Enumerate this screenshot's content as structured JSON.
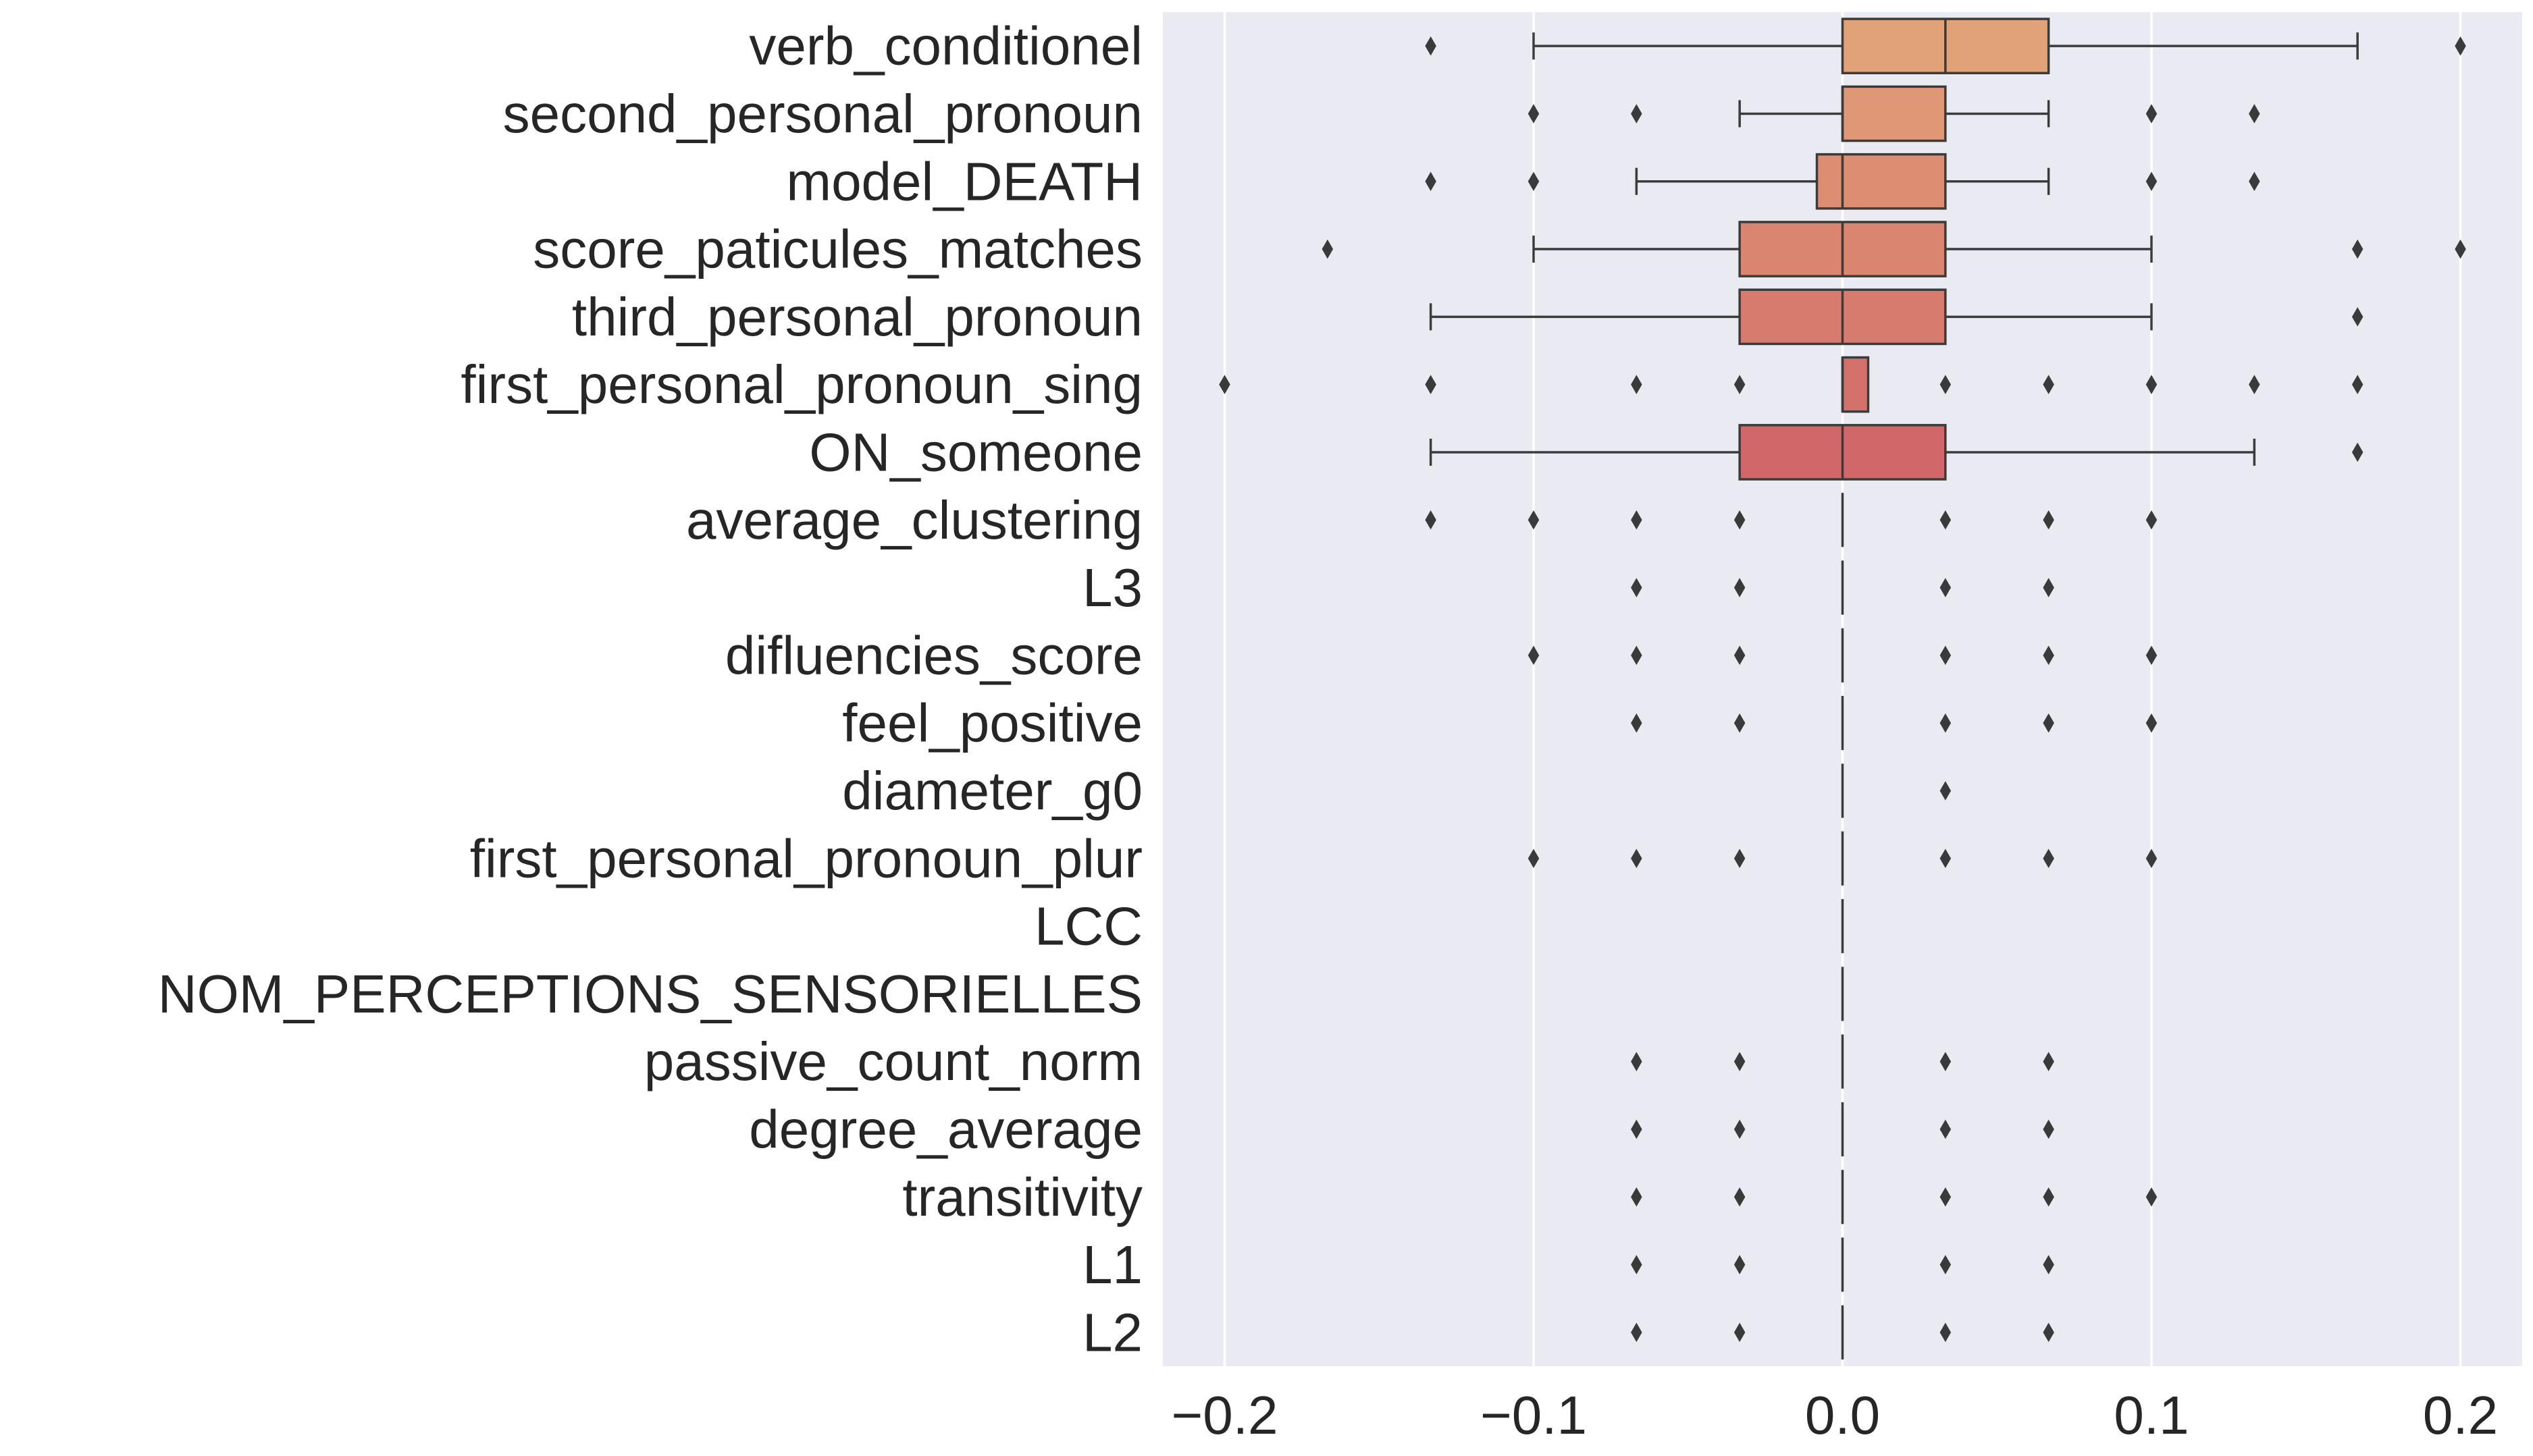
{
  "chart_data": {
    "type": "boxplot",
    "orientation": "horizontal",
    "title": "",
    "xlabel": "",
    "ylabel": "",
    "xlim": [
      -0.22,
      0.22
    ],
    "xticks": [
      -0.2,
      -0.1,
      0.0,
      0.1,
      0.2
    ],
    "xtick_labels": [
      "−0.2",
      "−0.1",
      "0.0",
      "0.1",
      "0.2"
    ],
    "grid": true,
    "colors": {
      "plot_background": "#eaeaf2",
      "grid": "#ffffff",
      "line": "#3b3b3b",
      "box_fills": [
        "#e2a278",
        "#df9775",
        "#dd8d72",
        "#d98570",
        "#d77b6e",
        "#d5716b",
        "#d26769"
      ]
    },
    "categories": [
      "verb_conditionel",
      "second_personal_pronoun",
      "model_DEATH",
      "score_paticules_matches",
      "third_personal_pronoun",
      "first_personal_pronoun_sing",
      "ON_someone",
      "average_clustering",
      "L3",
      "difluencies_score",
      "feel_positive",
      "diameter_g0",
      "first_personal_pronoun_plur",
      "LCC",
      "NOM_PERCEPTIONS_SENSORIELLES",
      "passive_count_norm",
      "degree_average",
      "transitivity",
      "L1",
      "L2"
    ],
    "boxes": [
      {
        "whislo": -0.1,
        "q1": 0.0,
        "med": 0.0333,
        "q3": 0.0667,
        "whishi": 0.1667,
        "fliers": [
          -0.1333,
          0.2
        ]
      },
      {
        "whislo": -0.0333,
        "q1": 0.0,
        "med": 0.0,
        "q3": 0.0333,
        "whishi": 0.0667,
        "fliers": [
          -0.1,
          -0.0667,
          0.1,
          0.1333
        ]
      },
      {
        "whislo": -0.0667,
        "q1": -0.0083,
        "med": 0.0,
        "q3": 0.0333,
        "whishi": 0.0667,
        "fliers": [
          -0.1333,
          -0.1,
          0.1,
          0.1333
        ]
      },
      {
        "whislo": -0.1,
        "q1": -0.0333,
        "med": 0.0,
        "q3": 0.0333,
        "whishi": 0.1,
        "fliers": [
          -0.1667,
          0.1667,
          0.2
        ]
      },
      {
        "whislo": -0.1333,
        "q1": -0.0333,
        "med": 0.0,
        "q3": 0.0333,
        "whishi": 0.1,
        "fliers": [
          0.1667
        ]
      },
      {
        "whislo": 0.0,
        "q1": 0.0,
        "med": 0.0,
        "q3": 0.0083,
        "whishi": 0.0083,
        "fliers": [
          -0.2,
          -0.1333,
          -0.0667,
          -0.0333,
          0.0333,
          0.0667,
          0.1,
          0.1333,
          0.1667
        ]
      },
      {
        "whislo": -0.1333,
        "q1": -0.0333,
        "med": 0.0,
        "q3": 0.0333,
        "whishi": 0.1333,
        "fliers": [
          0.1667
        ]
      },
      {
        "whislo": 0.0,
        "q1": 0.0,
        "med": 0.0,
        "q3": 0.0,
        "whishi": 0.0,
        "fliers": [
          -0.1333,
          -0.1,
          -0.0667,
          -0.0333,
          0.0333,
          0.0667,
          0.1
        ]
      },
      {
        "whislo": 0.0,
        "q1": 0.0,
        "med": 0.0,
        "q3": 0.0,
        "whishi": 0.0,
        "fliers": [
          -0.0667,
          -0.0333,
          0.0333,
          0.0667
        ]
      },
      {
        "whislo": 0.0,
        "q1": 0.0,
        "med": 0.0,
        "q3": 0.0,
        "whishi": 0.0,
        "fliers": [
          -0.1,
          -0.0667,
          -0.0333,
          0.0333,
          0.0667,
          0.1
        ]
      },
      {
        "whislo": 0.0,
        "q1": 0.0,
        "med": 0.0,
        "q3": 0.0,
        "whishi": 0.0,
        "fliers": [
          -0.0667,
          -0.0333,
          0.0333,
          0.0667,
          0.1
        ]
      },
      {
        "whislo": 0.0,
        "q1": 0.0,
        "med": 0.0,
        "q3": 0.0,
        "whishi": 0.0,
        "fliers": [
          0.0333
        ]
      },
      {
        "whislo": 0.0,
        "q1": 0.0,
        "med": 0.0,
        "q3": 0.0,
        "whishi": 0.0,
        "fliers": [
          -0.1,
          -0.0667,
          -0.0333,
          0.0333,
          0.0667,
          0.1
        ]
      },
      {
        "whislo": 0.0,
        "q1": 0.0,
        "med": 0.0,
        "q3": 0.0,
        "whishi": 0.0,
        "fliers": []
      },
      {
        "whislo": 0.0,
        "q1": 0.0,
        "med": 0.0,
        "q3": 0.0,
        "whishi": 0.0,
        "fliers": []
      },
      {
        "whislo": 0.0,
        "q1": 0.0,
        "med": 0.0,
        "q3": 0.0,
        "whishi": 0.0,
        "fliers": [
          -0.0667,
          -0.0333,
          0.0333,
          0.0667
        ]
      },
      {
        "whislo": 0.0,
        "q1": 0.0,
        "med": 0.0,
        "q3": 0.0,
        "whishi": 0.0,
        "fliers": [
          -0.0667,
          -0.0333,
          0.0333,
          0.0667
        ]
      },
      {
        "whislo": 0.0,
        "q1": 0.0,
        "med": 0.0,
        "q3": 0.0,
        "whishi": 0.0,
        "fliers": [
          -0.0667,
          -0.0333,
          0.0333,
          0.0667,
          0.1
        ]
      },
      {
        "whislo": 0.0,
        "q1": 0.0,
        "med": 0.0,
        "q3": 0.0,
        "whishi": 0.0,
        "fliers": [
          -0.0667,
          -0.0333,
          0.0333,
          0.0667
        ]
      },
      {
        "whislo": 0.0,
        "q1": 0.0,
        "med": 0.0,
        "q3": 0.0,
        "whishi": 0.0,
        "fliers": [
          -0.0667,
          -0.0333,
          0.0333,
          0.0667
        ]
      }
    ]
  }
}
